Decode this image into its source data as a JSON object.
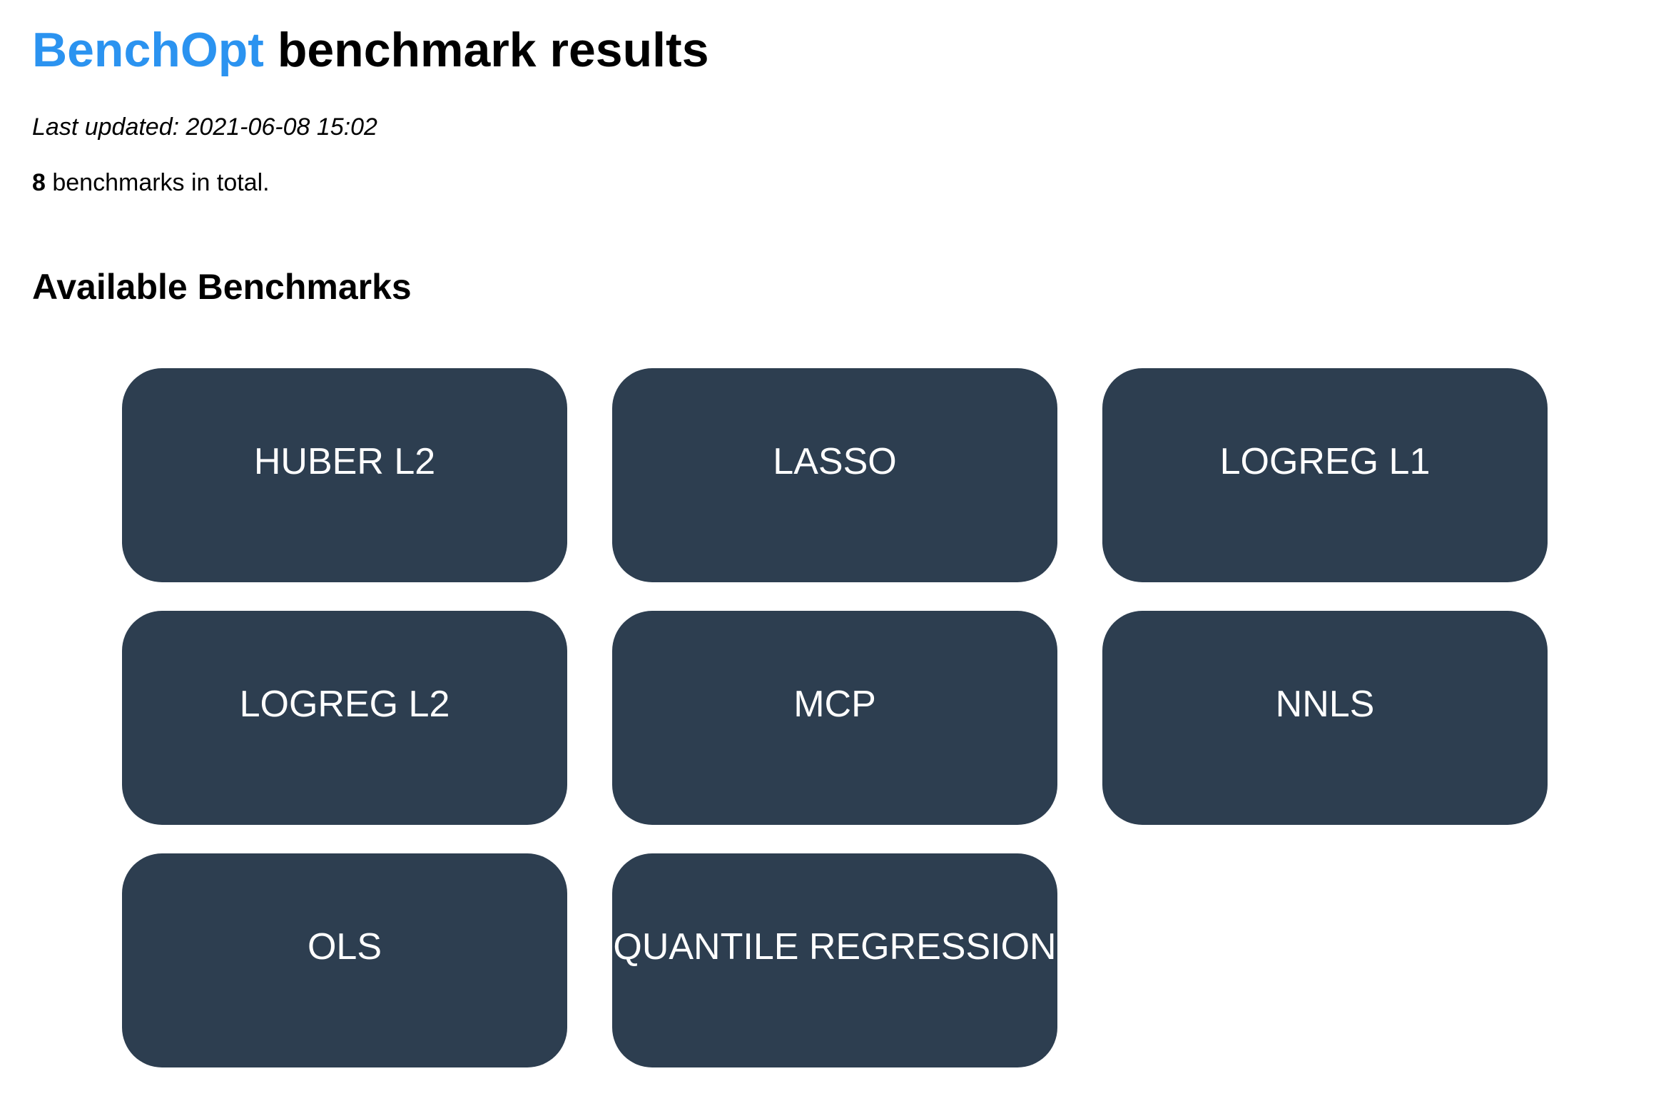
{
  "header": {
    "brand": "BenchOpt",
    "title_rest": "benchmark results"
  },
  "meta": {
    "last_updated": "Last updated: 2021-06-08 15:02",
    "total_count": "8",
    "total_suffix": " benchmarks in total."
  },
  "section": {
    "heading": "Available Benchmarks"
  },
  "benchmarks": [
    {
      "label": "HUBER L2"
    },
    {
      "label": "LASSO"
    },
    {
      "label": "LOGREG L1"
    },
    {
      "label": "LOGREG L2"
    },
    {
      "label": "MCP"
    },
    {
      "label": "NNLS"
    },
    {
      "label": "OLS"
    },
    {
      "label": "QUANTILE REGRESSION"
    }
  ],
  "colors": {
    "brand": "#2b93f0",
    "card_background": "#2d3e50",
    "card_text": "#ffffff"
  }
}
